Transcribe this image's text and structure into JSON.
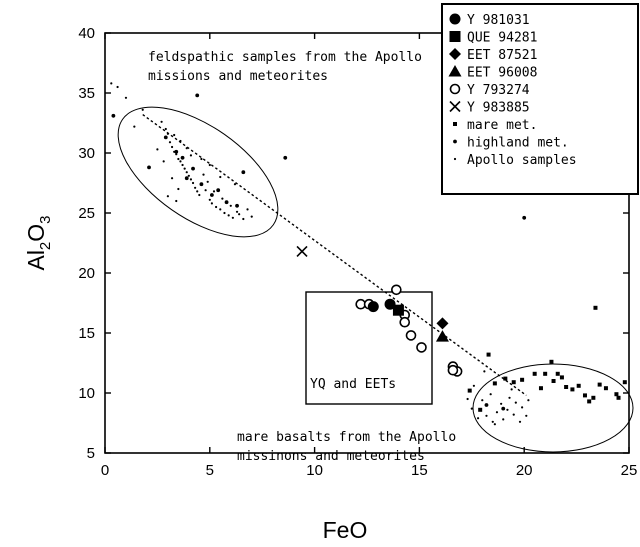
{
  "chart_data": {
    "type": "scatter",
    "xlabel": "FeO",
    "ylabel_main": "Al",
    "ylabel_sub1": "2",
    "ylabel_mid": "O",
    "ylabel_sub2": "3",
    "xlim": [
      0,
      25
    ],
    "ylim": [
      5,
      40
    ],
    "xticks": [
      0,
      5,
      10,
      15,
      20,
      25
    ],
    "yticks": [
      5,
      10,
      15,
      20,
      25,
      30,
      35,
      40
    ],
    "legend_position": "top-right",
    "series": [
      {
        "name": "Y 981031",
        "marker": "circle-filled",
        "points": [
          [
            12.8,
            17.2
          ],
          [
            13.6,
            17.4
          ]
        ]
      },
      {
        "name": "QUE 94281",
        "marker": "square-filled",
        "points": [
          [
            14.0,
            16.9
          ]
        ]
      },
      {
        "name": "EET 87521",
        "marker": "diamond-filled",
        "points": [
          [
            16.1,
            15.8
          ]
        ]
      },
      {
        "name": "EET 96008",
        "marker": "triangle-filled",
        "points": [
          [
            16.1,
            14.7
          ]
        ]
      },
      {
        "name": "Y 793274",
        "marker": "circle-open",
        "points": [
          [
            12.2,
            17.4
          ],
          [
            12.6,
            17.4
          ],
          [
            13.9,
            18.6
          ],
          [
            14.3,
            16.5
          ],
          [
            14.3,
            15.9
          ],
          [
            14.6,
            14.8
          ],
          [
            15.1,
            13.8
          ],
          [
            16.6,
            12.2
          ],
          [
            16.8,
            11.8
          ],
          [
            16.6,
            11.9
          ]
        ]
      },
      {
        "name": "Y 983885",
        "marker": "x",
        "points": [
          [
            9.4,
            21.8
          ]
        ]
      },
      {
        "name": "mare met.",
        "marker": "small-square",
        "points": [
          [
            17.4,
            10.2
          ],
          [
            17.9,
            8.6
          ],
          [
            18.3,
            13.2
          ],
          [
            18.6,
            10.8
          ],
          [
            19.1,
            11.2
          ],
          [
            19.5,
            10.9
          ],
          [
            19.9,
            11.1
          ],
          [
            20.5,
            11.6
          ],
          [
            20.8,
            10.4
          ],
          [
            21.0,
            11.6
          ],
          [
            21.3,
            12.6
          ],
          [
            21.4,
            11.0
          ],
          [
            21.6,
            11.6
          ],
          [
            21.8,
            11.3
          ],
          [
            22.0,
            10.5
          ],
          [
            22.3,
            10.3
          ],
          [
            22.6,
            10.6
          ],
          [
            22.9,
            9.8
          ],
          [
            23.1,
            9.3
          ],
          [
            23.3,
            9.6
          ],
          [
            23.4,
            17.1
          ],
          [
            23.6,
            10.7
          ],
          [
            23.9,
            10.4
          ],
          [
            24.4,
            9.9
          ],
          [
            24.8,
            10.9
          ],
          [
            24.5,
            9.6
          ]
        ]
      },
      {
        "name": "highland met.",
        "marker": "small-dot",
        "points": [
          [
            0.4,
            33.1
          ],
          [
            2.1,
            28.8
          ],
          [
            2.9,
            31.3
          ],
          [
            3.4,
            30.1
          ],
          [
            3.7,
            29.6
          ],
          [
            3.9,
            27.9
          ],
          [
            4.2,
            28.7
          ],
          [
            4.6,
            27.4
          ],
          [
            5.1,
            26.5
          ],
          [
            5.4,
            26.9
          ],
          [
            5.8,
            25.9
          ],
          [
            6.3,
            25.6
          ],
          [
            6.6,
            28.4
          ],
          [
            4.4,
            34.8
          ],
          [
            8.6,
            29.6
          ],
          [
            20.0,
            24.6
          ],
          [
            18.2,
            9.0
          ],
          [
            19.0,
            8.7
          ]
        ]
      },
      {
        "name": "Apollo samples",
        "marker": "tiny-dot",
        "points": [
          [
            0.3,
            35.8
          ],
          [
            0.6,
            35.5
          ],
          [
            1.0,
            34.6
          ],
          [
            1.4,
            32.2
          ],
          [
            1.8,
            33.6
          ],
          [
            2.7,
            32.6
          ],
          [
            2.9,
            32.0
          ],
          [
            3.0,
            31.6
          ],
          [
            3.1,
            30.9
          ],
          [
            3.2,
            30.5
          ],
          [
            3.3,
            30.1
          ],
          [
            3.4,
            29.9
          ],
          [
            3.5,
            29.5
          ],
          [
            3.6,
            29.3
          ],
          [
            3.7,
            29.0
          ],
          [
            3.8,
            28.7
          ],
          [
            3.9,
            28.4
          ],
          [
            4.0,
            28.1
          ],
          [
            4.1,
            27.8
          ],
          [
            4.2,
            27.5
          ],
          [
            4.3,
            27.1
          ],
          [
            4.4,
            26.8
          ],
          [
            4.5,
            26.5
          ],
          [
            4.6,
            29.5
          ],
          [
            4.7,
            28.2
          ],
          [
            4.8,
            26.9
          ],
          [
            4.9,
            27.6
          ],
          [
            5.0,
            26.1
          ],
          [
            5.1,
            25.8
          ],
          [
            5.2,
            26.8
          ],
          [
            5.3,
            25.5
          ],
          [
            5.5,
            25.3
          ],
          [
            5.6,
            26.2
          ],
          [
            5.7,
            25.0
          ],
          [
            5.9,
            24.8
          ],
          [
            6.0,
            25.6
          ],
          [
            6.1,
            24.6
          ],
          [
            6.3,
            25.1
          ],
          [
            6.4,
            24.9
          ],
          [
            6.6,
            24.5
          ],
          [
            6.8,
            25.3
          ],
          [
            7.0,
            24.7
          ],
          [
            3.3,
            31.5
          ],
          [
            3.6,
            31.0
          ],
          [
            3.9,
            30.4
          ],
          [
            4.1,
            29.8
          ],
          [
            3.5,
            27.0
          ],
          [
            3.2,
            27.9
          ],
          [
            3.0,
            26.4
          ],
          [
            3.4,
            26.0
          ],
          [
            5.0,
            29.0
          ],
          [
            5.5,
            28.0
          ],
          [
            6.2,
            27.4
          ],
          [
            2.5,
            30.3
          ],
          [
            2.8,
            29.3
          ],
          [
            17.5,
            8.7
          ],
          [
            17.8,
            7.9
          ],
          [
            18.0,
            9.4
          ],
          [
            18.2,
            8.1
          ],
          [
            18.4,
            9.9
          ],
          [
            18.5,
            7.6
          ],
          [
            18.7,
            8.4
          ],
          [
            18.9,
            9.1
          ],
          [
            19.0,
            7.8
          ],
          [
            19.2,
            8.6
          ],
          [
            19.3,
            9.6
          ],
          [
            19.5,
            8.2
          ],
          [
            19.6,
            9.2
          ],
          [
            19.8,
            7.6
          ],
          [
            19.9,
            8.8
          ],
          [
            20.1,
            8.1
          ],
          [
            20.2,
            9.4
          ],
          [
            17.6,
            10.6
          ],
          [
            18.1,
            11.8
          ],
          [
            19.4,
            10.3
          ],
          [
            17.3,
            9.5
          ],
          [
            18.6,
            7.4
          ]
        ]
      }
    ],
    "annotations": {
      "feld_line1": "feldspathic samples from the Apollo",
      "feld_line2": "missions and meteorites",
      "mare_line1": "mare basalts from the Apollo",
      "mare_line2": "missinons and meteorites",
      "box_label": "YQ and EETs"
    },
    "trend_line": [
      [
        1.8,
        33.2
      ],
      [
        20.1,
        9.8
      ]
    ]
  },
  "colors": {
    "ink": "#000000",
    "background": "#ffffff"
  }
}
